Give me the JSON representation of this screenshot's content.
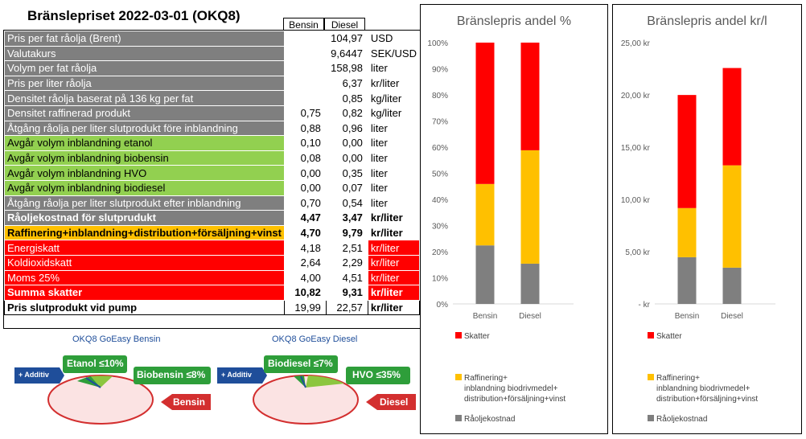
{
  "title": "Bränslepriset 2022-03-01 (OKQ8)",
  "columns": {
    "bensin": "Bensin",
    "diesel": "Diesel"
  },
  "rows": [
    {
      "label": "Pris per fat råolja (Brent)",
      "bensin": "104,97",
      "diesel": "",
      "unit": "USD",
      "style": "gray",
      "merged": true
    },
    {
      "label": "Valutakurs",
      "bensin": "9,6447",
      "diesel": "",
      "unit": "SEK/USD",
      "style": "gray",
      "merged": true
    },
    {
      "label": "Volym per fat råolja",
      "bensin": "158,98",
      "diesel": "",
      "unit": "liter",
      "style": "gray",
      "merged": true
    },
    {
      "label": "Pris per liter råolja",
      "bensin": "6,37",
      "diesel": "",
      "unit": "kr/liter",
      "style": "gray",
      "merged": true
    },
    {
      "label": "Densitet råolja baserat på 136 kg per fat",
      "bensin": "0,85",
      "diesel": "",
      "unit": "kg/liter",
      "style": "gray",
      "merged": true
    },
    {
      "label": "Densitet raffinerad produkt",
      "bensin": "0,75",
      "diesel": "0,82",
      "unit": "kg/liter",
      "style": "gray"
    },
    {
      "label": "Åtgång råolja per liter slutprodukt före inblandning",
      "bensin": "0,88",
      "diesel": "0,96",
      "unit": "liter",
      "style": "gray"
    },
    {
      "label": "Avgår volym inblandning etanol",
      "bensin": "0,10",
      "diesel": "0,00",
      "unit": "liter",
      "style": "green"
    },
    {
      "label": "Avgår volym inblandning biobensin",
      "bensin": "0,08",
      "diesel": "0,00",
      "unit": "liter",
      "style": "green"
    },
    {
      "label": "Avgår volym inblandning HVO",
      "bensin": "0,00",
      "diesel": "0,35",
      "unit": "liter",
      "style": "green"
    },
    {
      "label": "Avgår volym inblandning biodiesel",
      "bensin": "0,00",
      "diesel": "0,07",
      "unit": "liter",
      "style": "green"
    },
    {
      "label": "Åtgång råolja per liter slutprodukt efter inblandning",
      "bensin": "0,70",
      "diesel": "0,54",
      "unit": "liter",
      "style": "gray"
    },
    {
      "label": "Råoljekostnad för slutprudukt",
      "bensin": "4,47",
      "diesel": "3,47",
      "unit": "kr/liter",
      "style": "gray bold"
    },
    {
      "label": "Raffinering+inblandning+distribution+försäljning+vinst",
      "bensin": "4,70",
      "diesel": "9,79",
      "unit": "kr/liter",
      "style": "orange"
    },
    {
      "label": "Energiskatt",
      "bensin": "4,18",
      "diesel": "2,51",
      "unit": "kr/liter",
      "style": "red"
    },
    {
      "label": "Koldioxidskatt",
      "bensin": "2,64",
      "diesel": "2,29",
      "unit": "kr/liter",
      "style": "red"
    },
    {
      "label": "Moms 25%",
      "bensin": "4,00",
      "diesel": "4,51",
      "unit": "kr/liter",
      "style": "red"
    },
    {
      "label": "Summa skatter",
      "bensin": "10,82",
      "diesel": "9,31",
      "unit": "kr/liter",
      "style": "redb"
    },
    {
      "label": "Pris slutprodukt vid pump",
      "bensin": "19,99",
      "diesel": "22,57",
      "unit": "kr/liter",
      "style": "white"
    }
  ],
  "ads": {
    "bensin_title": "OKQ8 GoEasy Bensin",
    "diesel_title": "OKQ8 GoEasy Diesel",
    "additiv": "+ Additiv",
    "etanol": "Etanol ≤10%",
    "biobensin": "Biobensin ≤8%",
    "bensin_tag": "Bensin",
    "biodiesel": "Biodiesel ≤7%",
    "hvo": "HVO ≤35%",
    "diesel_tag": "Diesel"
  },
  "colors": {
    "skatter": "#ff0000",
    "raffinering": "#ffc000",
    "raoljekostnad": "#7f7f7f",
    "gray_row": "#7f7f7f",
    "green_row": "#92d050"
  },
  "chart_data": [
    {
      "type": "bar",
      "stacked": true,
      "title": "Bränslepris andel %",
      "categories": [
        "Bensin",
        "Diesel"
      ],
      "series": [
        {
          "name": "Råoljekostnad",
          "values": [
            22.4,
            15.4
          ]
        },
        {
          "name": "Raffinering+ inblandning biodrivmedel+ distribution+försäljning+vinst",
          "values": [
            23.5,
            43.4
          ]
        },
        {
          "name": "Skatter",
          "values": [
            54.1,
            41.2
          ]
        }
      ],
      "yticks": [
        "0%",
        "10%",
        "20%",
        "30%",
        "40%",
        "50%",
        "60%",
        "70%",
        "80%",
        "90%",
        "100%"
      ],
      "ylim": [
        0,
        100
      ],
      "legend": "bottom"
    },
    {
      "type": "bar",
      "stacked": true,
      "title": "Bränslepris andel kr/l",
      "categories": [
        "Bensin",
        "Diesel"
      ],
      "series": [
        {
          "name": "Råoljekostnad",
          "values": [
            4.47,
            3.47
          ]
        },
        {
          "name": "Raffinering+ inblandning biodrivmedel+ distribution+försäljning+vinst",
          "values": [
            4.7,
            9.79
          ]
        },
        {
          "name": "Skatter",
          "values": [
            10.82,
            9.31
          ]
        }
      ],
      "yticks": [
        "- kr",
        "5,00 kr",
        "10,00 kr",
        "15,00 kr",
        "20,00 kr",
        "25,00 kr"
      ],
      "ylim": [
        0,
        25
      ],
      "legend": "bottom"
    }
  ]
}
